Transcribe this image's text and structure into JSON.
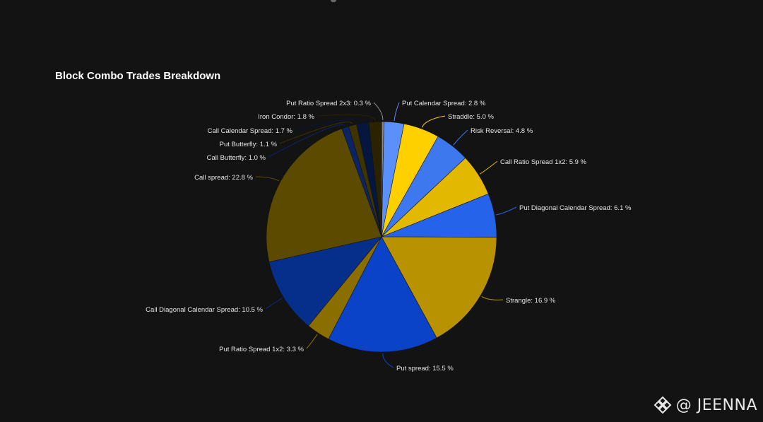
{
  "chart_data": {
    "type": "pie",
    "title": "Block Combo Trades Breakdown",
    "slices": [
      {
        "label": "Put Calendar Spread: 2.8 %",
        "value": 2.8,
        "color": "#5b8ff9"
      },
      {
        "label": "Straddle: 5.0 %",
        "value": 5.0,
        "color": "#ffd000"
      },
      {
        "label": "Risk Reversal: 4.8 %",
        "value": 4.8,
        "color": "#3d78ef"
      },
      {
        "label": "Call Ratio Spread 1x2: 5.9 %",
        "value": 5.9,
        "color": "#e3b800"
      },
      {
        "label": "Put Diagonal Calendar Spread: 6.1 %",
        "value": 6.1,
        "color": "#2563eb"
      },
      {
        "label": "Strangle: 16.9 %",
        "value": 16.9,
        "color": "#b89200"
      },
      {
        "label": "Put spread: 15.5 %",
        "value": 15.5,
        "color": "#0a43c8"
      },
      {
        "label": "Put Ratio Spread 1x2: 3.3 %",
        "value": 3.3,
        "color": "#8a6e00"
      },
      {
        "label": "Call Diagonal Calendar Spread: 10.5 %",
        "value": 10.5,
        "color": "#062f8c"
      },
      {
        "label": "Call spread: 22.8 %",
        "value": 22.8,
        "color": "#5b4a00"
      },
      {
        "label": "Call Butterfly: 1.0 %",
        "value": 1.0,
        "color": "#0b2466"
      },
      {
        "label": "Put Butterfly: 1.1 %",
        "value": 1.1,
        "color": "#3f3300"
      },
      {
        "label": "Call Calendar Spread: 1.7 %",
        "value": 1.7,
        "color": "#06173f"
      },
      {
        "label": "Iron Condor: 1.8 %",
        "value": 1.8,
        "color": "#2a2200"
      },
      {
        "label": "Put Ratio Spread 2x3: 0.3 %",
        "value": 0.3,
        "color": "#8a8a8a"
      }
    ],
    "legend": "none"
  },
  "watermark": {
    "text": "@ JEENNA"
  }
}
